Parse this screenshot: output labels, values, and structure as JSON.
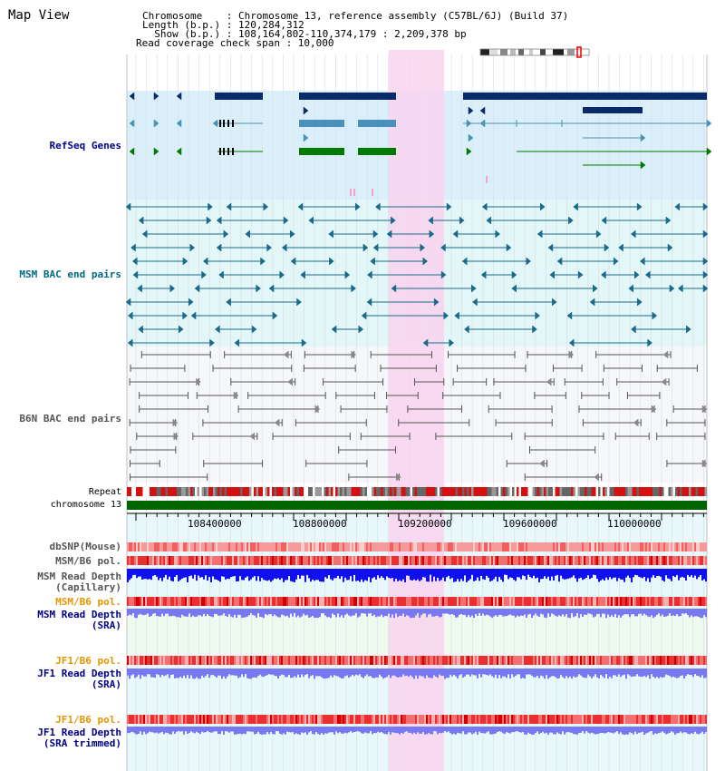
{
  "window": {
    "title": "Map View"
  },
  "info": {
    "chromosome_line": "Chromosome    : Chromosome 13, reference assembly (C57BL/6J) (Build 37)",
    "length_line": "Length (b.p.) : 120,284,312",
    "show_line": "  Show (b.p.) : 108,164,802-110,374,179 : 2,209,378 bp",
    "coverage_line": "Read coverage check span : 10,000"
  },
  "tracks": {
    "refseq": "RefSeq Genes",
    "msm_bac": "MSM BAC end pairs",
    "b6n_bac": "B6N BAC end pairs",
    "repeat": "Repeat",
    "chromosome": "chromosome 13",
    "dbsnp": "dbSNP(Mouse)",
    "msm_b6_pol": "MSM/B6 pol.",
    "msm_depth_cap_1": "MSM Read Depth",
    "msm_depth_cap_2": "(Capillary)",
    "msm_b6_pol2": "MSM/B6 pol.",
    "msm_depth_sra_1": "MSM Read Depth",
    "msm_depth_sra_2": "(SRA)",
    "jf1_b6_pol": "JF1/B6 pol.",
    "jf1_depth_sra_1": "JF1 Read Depth",
    "jf1_depth_sra_2": "(SRA)",
    "jf1_b6_pol2": "JF1/B6 pol.",
    "jf1_depth_trim_1": "JF1 Read Depth",
    "jf1_depth_trim_2": "(SRA trimmed)"
  },
  "axis": {
    "ticks": [
      "108400000",
      "108800000",
      "109200000",
      "109600000",
      "110000000"
    ]
  },
  "colors": {
    "refseq_bg": "#dbeffa",
    "msm_bg": "#e3f6f8",
    "b6n_bg": "#f6f7fb",
    "highlight": "#f9d3ef",
    "gene_navy": "#0a2a6a",
    "gene_steel": "#4a90b8",
    "gene_green": "#007a00",
    "msm_line": "#1a6a8a",
    "b6n_line": "#555555",
    "chrom_green": "#006400",
    "depth_blue": "#1010ee",
    "depth_light": "#7878f0"
  }
}
